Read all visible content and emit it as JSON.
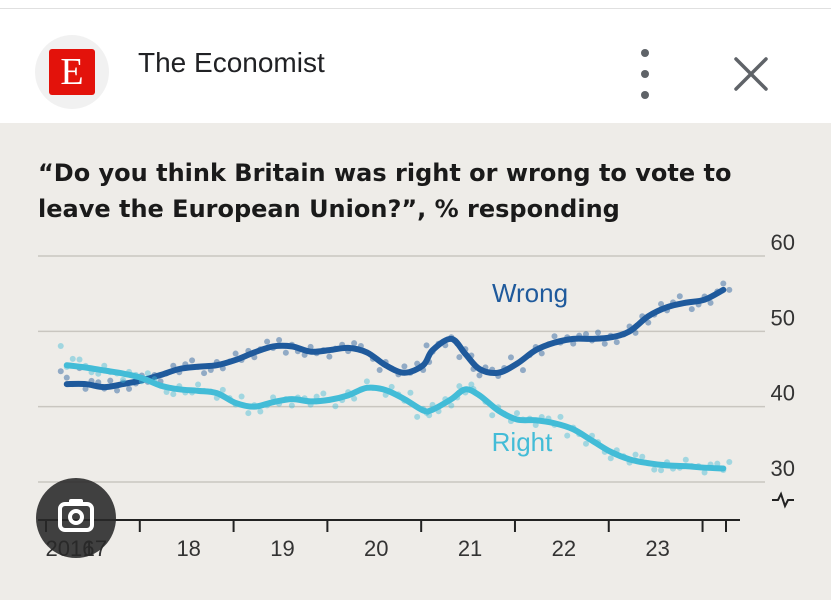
{
  "header": {
    "logo_letter": "E",
    "publisher": "The Economist",
    "menu_icon": "more-vert-icon",
    "close_icon": "close-icon"
  },
  "overlay": {
    "icon": "google-lens-icon"
  },
  "colors": {
    "wrong": "#1f5a9c",
    "right": "#43bcd7",
    "brand": "#e3120b"
  },
  "chart_data": {
    "type": "line",
    "title": "“Do you think Britain was right or wrong to vote to leave the European Union?”, % responding",
    "ylim": [
      30,
      60
    ],
    "yticks": [
      30,
      40,
      50,
      60
    ],
    "xlim": [
      2016.5,
      2023.75
    ],
    "xticks": [
      {
        "label": "2016",
        "x": 2016.5
      },
      {
        "label": "17",
        "x": 2017
      },
      {
        "label": "18",
        "x": 2018
      },
      {
        "label": "19",
        "x": 2019
      },
      {
        "label": "20",
        "x": 2020
      },
      {
        "label": "21",
        "x": 2021
      },
      {
        "label": "22",
        "x": 2022
      },
      {
        "label": "23",
        "x": 2023
      }
    ],
    "grid": true,
    "series": [
      {
        "name": "Wrong",
        "color": "#1f5a9c",
        "x": [
          2016.7,
          2016.9,
          2017.1,
          2017.3,
          2017.5,
          2017.7,
          2017.9,
          2018.1,
          2018.3,
          2018.5,
          2018.7,
          2018.9,
          2019.1,
          2019.3,
          2019.5,
          2019.7,
          2019.9,
          2020.1,
          2020.3,
          2020.5,
          2020.6,
          2020.8,
          2020.95,
          2021.1,
          2021.3,
          2021.5,
          2021.7,
          2021.9,
          2022.1,
          2022.3,
          2022.5,
          2022.7,
          2022.9,
          2023.1,
          2023.3,
          2023.5,
          2023.7
        ],
        "y": [
          43,
          43,
          42.6,
          43,
          43.5,
          44.2,
          45,
          45.3,
          45.5,
          46.2,
          47.2,
          48,
          48,
          47.3,
          47.5,
          47.8,
          47.2,
          45.5,
          44.5,
          45.5,
          47.5,
          49,
          47,
          45,
          44.5,
          45.7,
          47.5,
          48.5,
          49,
          49,
          49.2,
          50,
          52,
          53.2,
          53.8,
          54.2,
          55.5
        ]
      },
      {
        "name": "Right",
        "color": "#43bcd7",
        "x": [
          2016.7,
          2016.9,
          2017.1,
          2017.3,
          2017.5,
          2017.7,
          2017.9,
          2018.1,
          2018.3,
          2018.5,
          2018.7,
          2018.9,
          2019.1,
          2019.3,
          2019.5,
          2019.7,
          2019.9,
          2020.1,
          2020.3,
          2020.5,
          2020.6,
          2020.8,
          2020.95,
          2021.1,
          2021.3,
          2021.5,
          2021.7,
          2021.9,
          2022.1,
          2022.3,
          2022.5,
          2022.7,
          2022.9,
          2023.1,
          2023.3,
          2023.5,
          2023.7
        ],
        "y": [
          45.5,
          45.2,
          44.8,
          44.4,
          43.8,
          42.8,
          42.3,
          42.1,
          41.8,
          40.5,
          40,
          40.6,
          41,
          40.7,
          40.9,
          41.5,
          42.5,
          42.2,
          41,
          39.5,
          39.6,
          41,
          42.3,
          41.5,
          39.5,
          38.3,
          38.2,
          37.8,
          37,
          35.5,
          34,
          33,
          32.5,
          32.2,
          32.1,
          31.9,
          31.8
        ]
      }
    ],
    "annotations": [
      {
        "text": "Wrong",
        "series": "Wrong"
      },
      {
        "text": "Right",
        "series": "Right"
      }
    ]
  }
}
